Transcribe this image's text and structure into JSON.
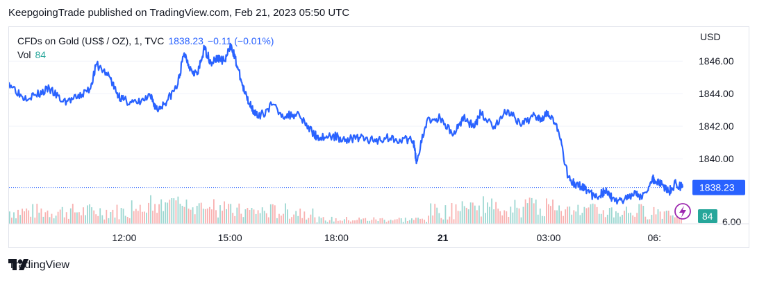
{
  "header": {
    "published": "KeepgoingTrade published on TradingView.com, Feb 21, 2023 05:50 UTC"
  },
  "legend": {
    "symbol": "CFDs on Gold (US$ / OZ), 1, TVC",
    "price": "1838.23",
    "change": "−0.11 (−0.01%)",
    "vol_label": "Vol",
    "vol_value": "84"
  },
  "axis": {
    "unit": "USD"
  },
  "footer": {
    "brand": "TradingView"
  },
  "colors": {
    "line": "#2962ff",
    "vol_up": "#26a69a",
    "vol_down": "#ef5350",
    "grid": "#f0f3fa"
  },
  "chart_data": {
    "type": "line",
    "title": "CFDs on Gold (US$ / OZ), 1, TVC",
    "y_ticks": [
      "1846.00",
      "1844.00",
      "1842.00",
      "1840.00"
    ],
    "y_range": [
      1836.0,
      1847.5
    ],
    "x_ticks": [
      {
        "label": "12:00",
        "bold": false,
        "t": 0.171
      },
      {
        "label": "15:00",
        "bold": false,
        "t": 0.328
      },
      {
        "label": "18:00",
        "bold": false,
        "t": 0.486
      },
      {
        "label": "21",
        "bold": true,
        "t": 0.644
      },
      {
        "label": "03:00",
        "bold": false,
        "t": 0.801
      },
      {
        "label": "06:",
        "bold": false,
        "t": 0.958
      }
    ],
    "last_price_label": "1838.23",
    "last_volume_label": "84",
    "series": [
      {
        "x": [
          0,
          0.02,
          0.04,
          0.06,
          0.08,
          0.1,
          0.12,
          0.13,
          0.15,
          0.16,
          0.17,
          0.19,
          0.21,
          0.22,
          0.235,
          0.25,
          0.26,
          0.27,
          0.28,
          0.29,
          0.3,
          0.31,
          0.32,
          0.33,
          0.34,
          0.35,
          0.36,
          0.37,
          0.39,
          0.41,
          0.43,
          0.45,
          0.46,
          0.48,
          0.5,
          0.52,
          0.54,
          0.56,
          0.58,
          0.6,
          0.605,
          0.62,
          0.64,
          0.66,
          0.675,
          0.69,
          0.7,
          0.72,
          0.74,
          0.76,
          0.78,
          0.79,
          0.8,
          0.815,
          0.83,
          0.84,
          0.85,
          0.855,
          0.87,
          0.88,
          0.89,
          0.895,
          0.91,
          0.93,
          0.94,
          0.955,
          0.96,
          0.97,
          0.98,
          0.99,
          1.0
        ],
        "y": [
          1844.7,
          1843.8,
          1843.9,
          1844.3,
          1843.5,
          1843.7,
          1844.3,
          1845.8,
          1845.0,
          1844.0,
          1843.6,
          1843.4,
          1843.8,
          1843.0,
          1843.6,
          1844.5,
          1846.5,
          1845.5,
          1845.2,
          1846.8,
          1845.9,
          1846.2,
          1846.0,
          1847.0,
          1845.5,
          1844.0,
          1843.2,
          1842.5,
          1843.3,
          1842.6,
          1842.8,
          1841.6,
          1841.3,
          1841.4,
          1841.2,
          1841.3,
          1841.1,
          1841.3,
          1841.2,
          1841.1,
          1839.8,
          1842.3,
          1842.5,
          1841.5,
          1842.6,
          1841.9,
          1842.8,
          1842.0,
          1843.0,
          1842.0,
          1842.7,
          1842.5,
          1842.9,
          1841.8,
          1838.9,
          1838.4,
          1838.3,
          1838.2,
          1837.6,
          1837.9,
          1838.0,
          1837.5,
          1837.4,
          1838.0,
          1837.6,
          1838.8,
          1838.6,
          1838.4,
          1838.0,
          1838.5,
          1838.23
        ]
      }
    ]
  }
}
